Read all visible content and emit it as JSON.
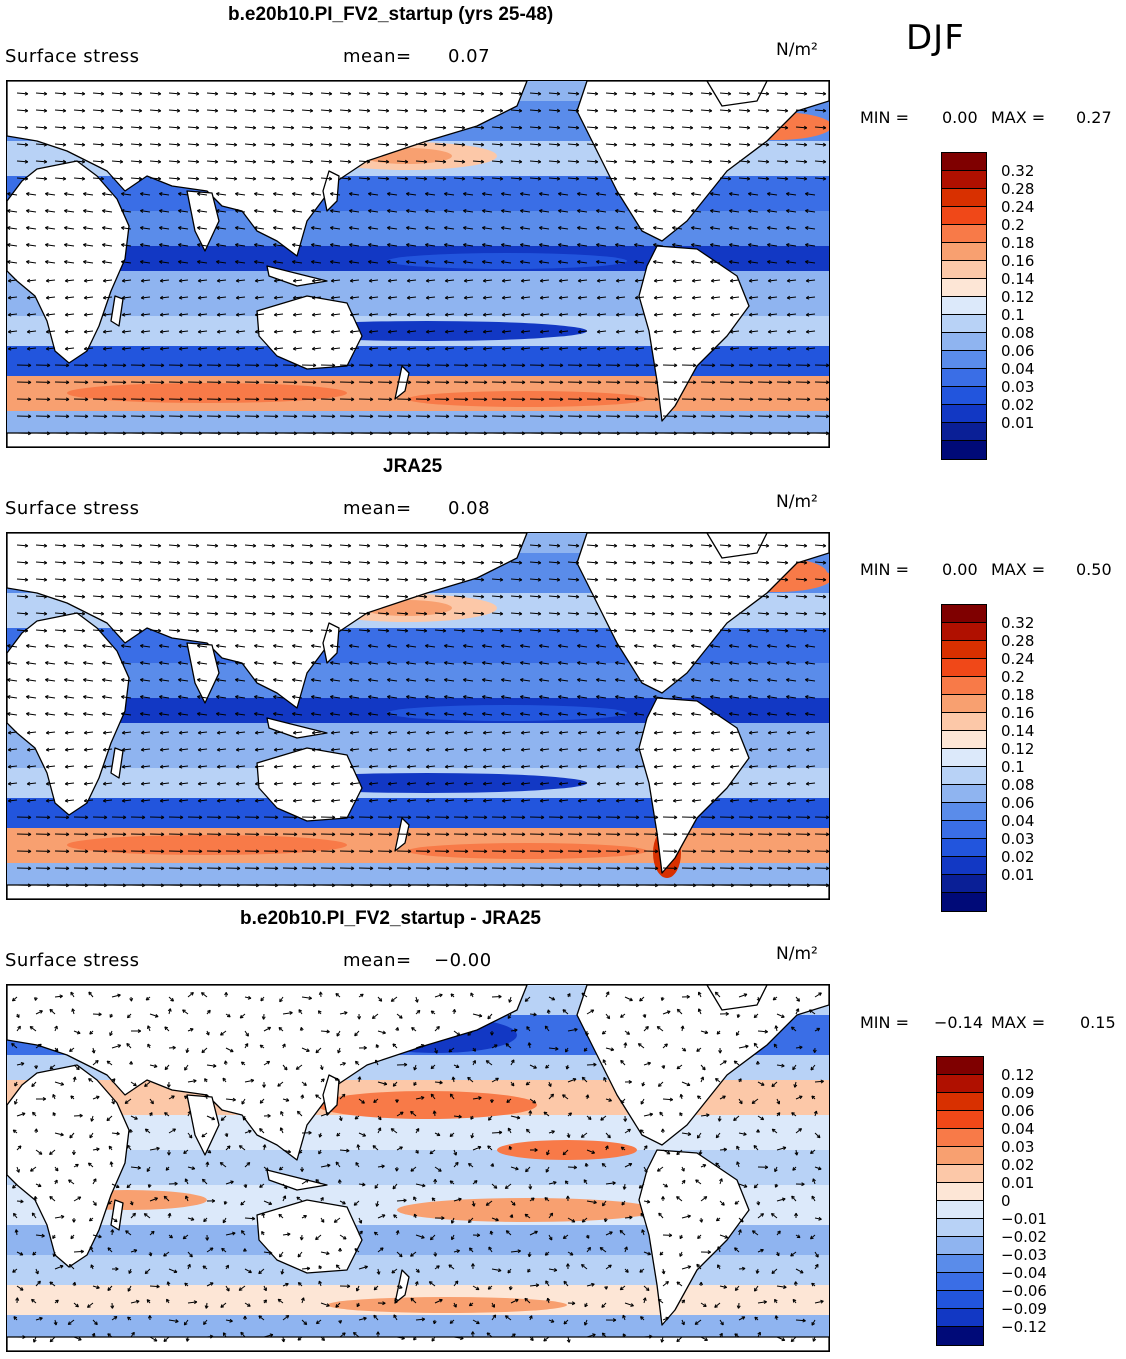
{
  "season": "DJF",
  "palette_abs": [
    "#7f0000",
    "#b01000",
    "#d83000",
    "#f04818",
    "#f87a48",
    "#f8a070",
    "#fcc8a8",
    "#fde6d6",
    "#dce9fa",
    "#b8d2f6",
    "#8fb4f0",
    "#5a8cea",
    "#3a6ee6",
    "#2255dd",
    "#1238c4",
    "#0a1f96",
    "#000a78"
  ],
  "palette_diff": [
    "#7f0000",
    "#b01000",
    "#d83000",
    "#f04818",
    "#f87a48",
    "#f8a070",
    "#fcc8a8",
    "#fde6d6",
    "#dce9fa",
    "#b8d2f6",
    "#8fb4f0",
    "#5a8cea",
    "#3a6ee6",
    "#2255dd",
    "#1238c4",
    "#000a78"
  ],
  "panels": [
    {
      "title": "b.e20b10.PI_FV2_startup (yrs 25-48)",
      "variable": "Surface stress",
      "mean_label": "mean=",
      "mean_value": "0.07",
      "unit": "N/m²",
      "min_label": "MIN =",
      "min_value": "0.00",
      "max_label": "MAX =",
      "max_value": "0.27",
      "legend": [
        "0.32",
        "0.28",
        "0.24",
        "0.2",
        "0.18",
        "0.16",
        "0.14",
        "0.12",
        "0.1",
        "0.08",
        "0.06",
        "0.04",
        "0.03",
        "0.02",
        "0.01"
      ]
    },
    {
      "title": "JRA25",
      "variable": "Surface stress",
      "mean_label": "mean=",
      "mean_value": "0.08",
      "unit": "N/m²",
      "min_label": "MIN =",
      "min_value": "0.00",
      "max_label": "MAX =",
      "max_value": "0.50",
      "legend": [
        "0.32",
        "0.28",
        "0.24",
        "0.2",
        "0.18",
        "0.16",
        "0.14",
        "0.12",
        "0.1",
        "0.08",
        "0.06",
        "0.04",
        "0.03",
        "0.02",
        "0.01"
      ]
    },
    {
      "title": "b.e20b10.PI_FV2_startup - JRA25",
      "variable": "Surface stress",
      "mean_label": "mean=",
      "mean_value": "−0.00",
      "unit": "N/m²",
      "min_label": "MIN =",
      "min_value": "−0.14",
      "max_label": "MAX =",
      "max_value": "0.15",
      "legend": [
        "0.12",
        "0.09",
        "0.06",
        "0.04",
        "0.03",
        "0.02",
        "0.01",
        "0",
        "−0.01",
        "−0.02",
        "−0.03",
        "−0.04",
        "−0.06",
        "−0.09",
        "−0.12"
      ]
    }
  ]
}
